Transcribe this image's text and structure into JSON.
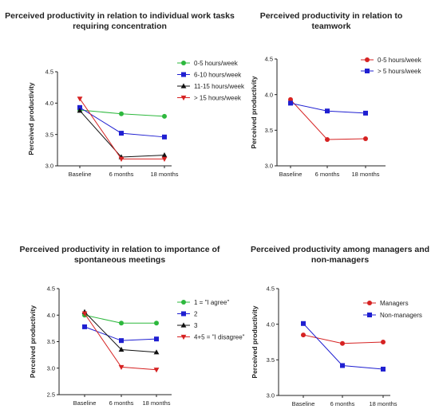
{
  "chart_data": [
    {
      "type": "line",
      "title": "Perceived productivity in relation to individual work tasks requiring concentration",
      "ylabel": "Perceived productivity",
      "xlabel": "",
      "categories": [
        "Baseline",
        "6 months",
        "18 months"
      ],
      "ylim": [
        3.0,
        4.5
      ],
      "yticks": [
        "3.0",
        "3.5",
        "4.0",
        "4.5"
      ],
      "legend_position": "right",
      "series": [
        {
          "name": "0-5 hours/week",
          "color": "#2db83d",
          "marker": "circle",
          "values": [
            3.89,
            3.83,
            3.79
          ]
        },
        {
          "name": "6-10 hours/week",
          "color": "#1f1fd1",
          "marker": "square",
          "values": [
            3.93,
            3.52,
            3.46
          ]
        },
        {
          "name": "11-15 hours/week",
          "color": "#111111",
          "marker": "triangle-up",
          "values": [
            3.88,
            3.14,
            3.17
          ]
        },
        {
          "name": "> 15 hours/week",
          "color": "#d62222",
          "marker": "triangle-down",
          "values": [
            4.07,
            3.11,
            3.11
          ]
        }
      ]
    },
    {
      "type": "line",
      "title": "Perceived productivity in relation to teamwork",
      "ylabel": "Perceived productivity",
      "xlabel": "",
      "categories": [
        "Baseline",
        "6 months",
        "18 months"
      ],
      "ylim": [
        3.0,
        4.5
      ],
      "yticks": [
        "3.0",
        "3.5",
        "4.0",
        "4.5"
      ],
      "legend_position": "top-right",
      "series": [
        {
          "name": "0-5 hours/week",
          "color": "#d62222",
          "marker": "circle",
          "values": [
            3.93,
            3.37,
            3.38
          ]
        },
        {
          "name": "> 5 hours/week",
          "color": "#1f1fd1",
          "marker": "square",
          "values": [
            3.88,
            3.77,
            3.74
          ]
        }
      ]
    },
    {
      "type": "line",
      "title": "Perceived productivity in relation to importance of spontaneous meetings",
      "ylabel": "Perceived productivity",
      "xlabel": "",
      "categories": [
        "Baseline",
        "6 months",
        "18 months"
      ],
      "ylim": [
        2.5,
        4.5
      ],
      "yticks": [
        "2.5",
        "3.0",
        "3.5",
        "4.0",
        "4.5"
      ],
      "legend_position": "right",
      "series": [
        {
          "name": "1 = \"I agree\"",
          "color": "#2db83d",
          "marker": "circle",
          "values": [
            4.0,
            3.85,
            3.85
          ]
        },
        {
          "name": "2",
          "color": "#1f1fd1",
          "marker": "square",
          "values": [
            3.78,
            3.52,
            3.55
          ]
        },
        {
          "name": "3",
          "color": "#111111",
          "marker": "triangle-up",
          "values": [
            4.06,
            3.35,
            3.3
          ]
        },
        {
          "name": "4+5 = \"I disagree\"",
          "color": "#d62222",
          "marker": "triangle-down",
          "values": [
            4.03,
            3.02,
            2.97
          ]
        }
      ]
    },
    {
      "type": "line",
      "title": "Perceived productivity among managers and non-managers",
      "ylabel": "Perceived productivity",
      "xlabel": "",
      "categories": [
        "Baseline",
        "6 months",
        "18 months"
      ],
      "ylim": [
        3.0,
        4.5
      ],
      "yticks": [
        "3.0",
        "3.5",
        "4.0",
        "4.5"
      ],
      "legend_position": "top-right",
      "series": [
        {
          "name": "Managers",
          "color": "#d62222",
          "marker": "circle",
          "values": [
            3.85,
            3.73,
            3.75
          ]
        },
        {
          "name": "Non-managers",
          "color": "#1f1fd1",
          "marker": "square",
          "values": [
            4.01,
            3.42,
            3.37
          ]
        }
      ]
    }
  ]
}
